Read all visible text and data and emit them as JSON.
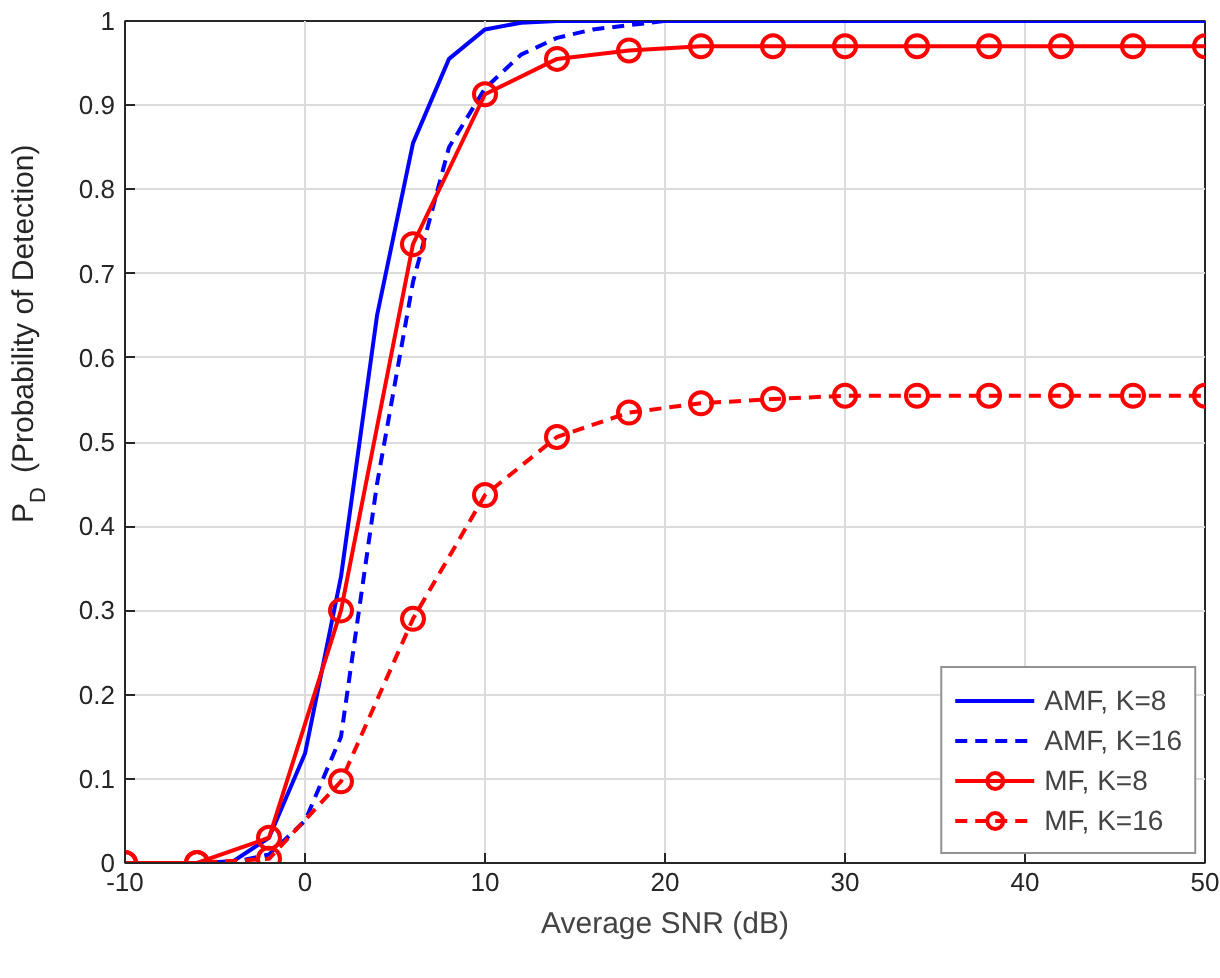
{
  "chart_data": {
    "type": "line",
    "xlabel": "Average SNR (dB)",
    "ylabel": "P$_{D}$ (Probability of Detection)",
    "xlim": [
      -10,
      50
    ],
    "xticks": [
      -10,
      0,
      10,
      20,
      30,
      40,
      50
    ],
    "ylim": [
      0,
      1
    ],
    "yticks": [
      0,
      0.1,
      0.2,
      0.3,
      0.4,
      0.5,
      0.6,
      0.7,
      0.8,
      0.9,
      1
    ],
    "grid": true,
    "legend": "bottom right",
    "series": [
      {
        "name": "AMF, K=8",
        "color": "#0000ff",
        "line_style": "solid",
        "marker": "none",
        "x": [
          -10,
          -8,
          -6,
          -4,
          -2,
          0,
          2,
          4,
          6,
          8,
          10,
          12,
          14,
          16,
          20,
          30,
          40,
          50
        ],
        "values": [
          0,
          0,
          0,
          0.002,
          0.03,
          0.13,
          0.34,
          0.65,
          0.855,
          0.955,
          0.99,
          0.998,
          1,
          1,
          1,
          1,
          1,
          1
        ]
      },
      {
        "name": "AMF, K=16",
        "color": "#0000ff",
        "line_style": "dashed",
        "marker": "none",
        "x": [
          -10,
          -8,
          -6,
          -4,
          -2,
          0,
          2,
          4,
          6,
          8,
          10,
          12,
          14,
          16,
          18,
          20,
          30,
          40,
          50
        ],
        "values": [
          0,
          0,
          0,
          0.001,
          0.01,
          0.05,
          0.15,
          0.45,
          0.69,
          0.85,
          0.92,
          0.96,
          0.98,
          0.99,
          0.995,
          1,
          1,
          1,
          1
        ]
      },
      {
        "name": "MF, K=8",
        "color": "#ff0000",
        "line_style": "solid",
        "marker": "circle",
        "x": [
          -10,
          -6,
          -2,
          2,
          6,
          10,
          14,
          18,
          22,
          26,
          30,
          34,
          38,
          42,
          46,
          50
        ],
        "values": [
          0,
          0,
          0.03,
          0.3,
          0.735,
          0.913,
          0.955,
          0.965,
          0.97,
          0.97,
          0.97,
          0.97,
          0.97,
          0.97,
          0.97,
          0.97
        ]
      },
      {
        "name": "MF, K=16",
        "color": "#ff0000",
        "line_style": "dashed",
        "marker": "circle",
        "x": [
          -10,
          -6,
          -2,
          2,
          6,
          10,
          14,
          18,
          22,
          26,
          30,
          34,
          38,
          42,
          46,
          50
        ],
        "values": [
          0,
          0,
          0.005,
          0.097,
          0.29,
          0.437,
          0.506,
          0.535,
          0.546,
          0.551,
          0.555,
          0.555,
          0.555,
          0.555,
          0.555,
          0.555
        ]
      }
    ]
  }
}
